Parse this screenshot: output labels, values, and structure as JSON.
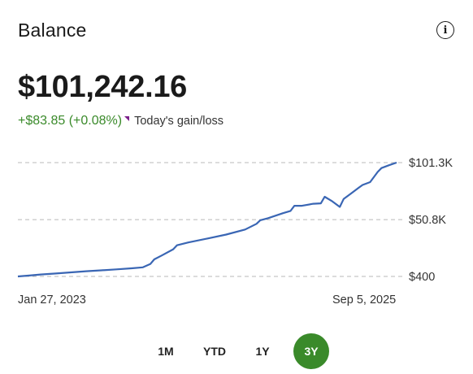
{
  "header": {
    "title": "Balance",
    "info_icon": "info-icon"
  },
  "balance": {
    "value": "$101,242.16",
    "gain": "+$83.85 (+0.08%)",
    "gain_label": "Today's gain/loss",
    "gain_color": "#3a8a2a",
    "flag_color": "#7a1f8a"
  },
  "chart_data": {
    "type": "line",
    "y_ticks": [
      "$101.3K",
      "$50.8K",
      "$400"
    ],
    "y_tick_values": [
      101300,
      50800,
      400
    ],
    "ylim": [
      400,
      101300
    ],
    "x_start_label": "Jan 27, 2023",
    "x_end_label": "Sep 5, 2025",
    "x": [
      0,
      0.03,
      0.06,
      0.1,
      0.14,
      0.18,
      0.22,
      0.26,
      0.3,
      0.33,
      0.35,
      0.36,
      0.38,
      0.41,
      0.42,
      0.45,
      0.5,
      0.55,
      0.6,
      0.63,
      0.64,
      0.66,
      0.7,
      0.72,
      0.73,
      0.75,
      0.78,
      0.8,
      0.81,
      0.83,
      0.85,
      0.86,
      0.88,
      0.9,
      0.91,
      0.93,
      0.95,
      0.96,
      0.98,
      1.0
    ],
    "values": [
      400,
      1200,
      2100,
      3000,
      4000,
      5000,
      5800,
      6700,
      7600,
      8500,
      11500,
      15500,
      19000,
      24500,
      28000,
      30500,
      34000,
      37500,
      42000,
      47000,
      50200,
      52000,
      56500,
      58500,
      63000,
      63000,
      64800,
      65200,
      71000,
      67000,
      62000,
      69000,
      74000,
      79000,
      81500,
      84000,
      93000,
      96500,
      99000,
      101300
    ],
    "series": [
      {
        "color": "#3a66b4"
      }
    ],
    "grid": true
  },
  "ranges": [
    {
      "label": "1M",
      "active": false
    },
    {
      "label": "YTD",
      "active": false
    },
    {
      "label": "1Y",
      "active": false
    },
    {
      "label": "3Y",
      "active": true
    }
  ]
}
